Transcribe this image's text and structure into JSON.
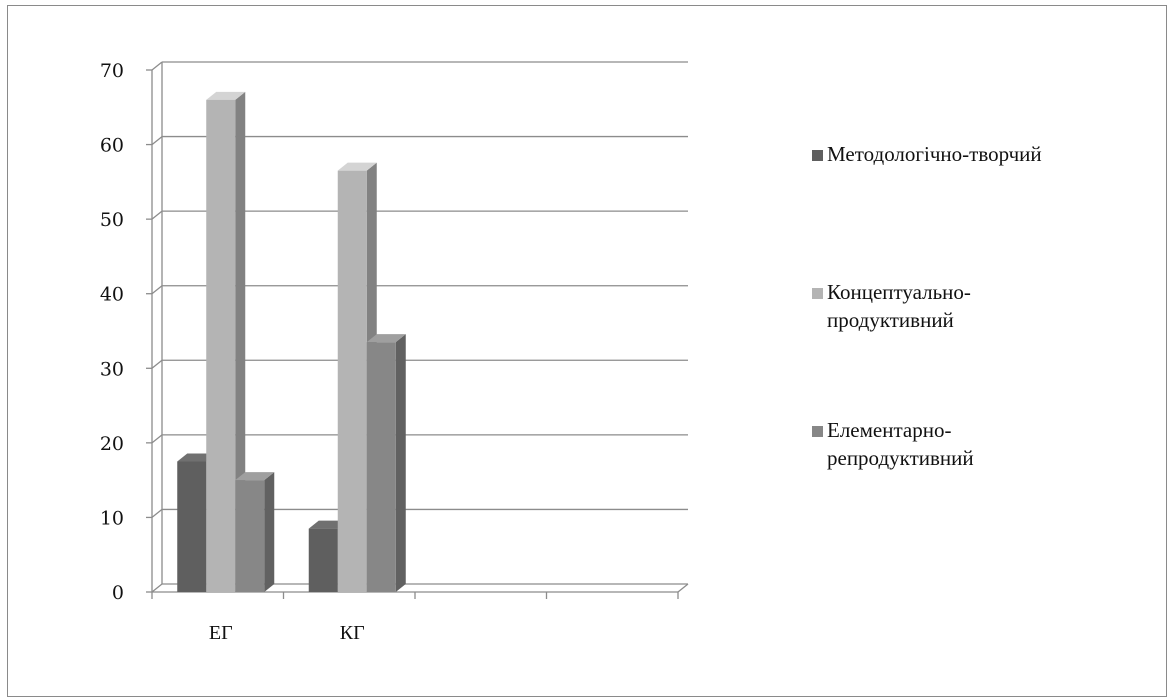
{
  "chart_data": {
    "type": "bar",
    "categories": [
      "ЕГ",
      "КГ"
    ],
    "series": [
      {
        "name": "Методологічно-творчий",
        "values": [
          17.5,
          8.5
        ]
      },
      {
        "name": "Концептуально-продуктивний",
        "values": [
          66,
          56.5
        ]
      },
      {
        "name": "Елементарно-репродуктивний",
        "values": [
          15,
          33.5
        ]
      }
    ],
    "ylim": [
      0,
      70
    ],
    "yticks": [
      "0",
      "10",
      "20",
      "30",
      "40",
      "50",
      "60",
      "70"
    ],
    "grid": true,
    "legend_position": "right",
    "style": "3d-clustered-column",
    "colors": {
      "series": [
        "#5f5f5f",
        "#b4b4b4",
        "#878787"
      ],
      "grid": "#8c8c8c",
      "axis": "#8c8c8c"
    },
    "title": "",
    "xlabel": "",
    "ylabel": ""
  },
  "legend": {
    "items": [
      {
        "label": "Методологічно-творчий"
      },
      {
        "label": "Концептуально-продуктивний"
      },
      {
        "label": "Елементарно-репродуктивний"
      }
    ]
  }
}
